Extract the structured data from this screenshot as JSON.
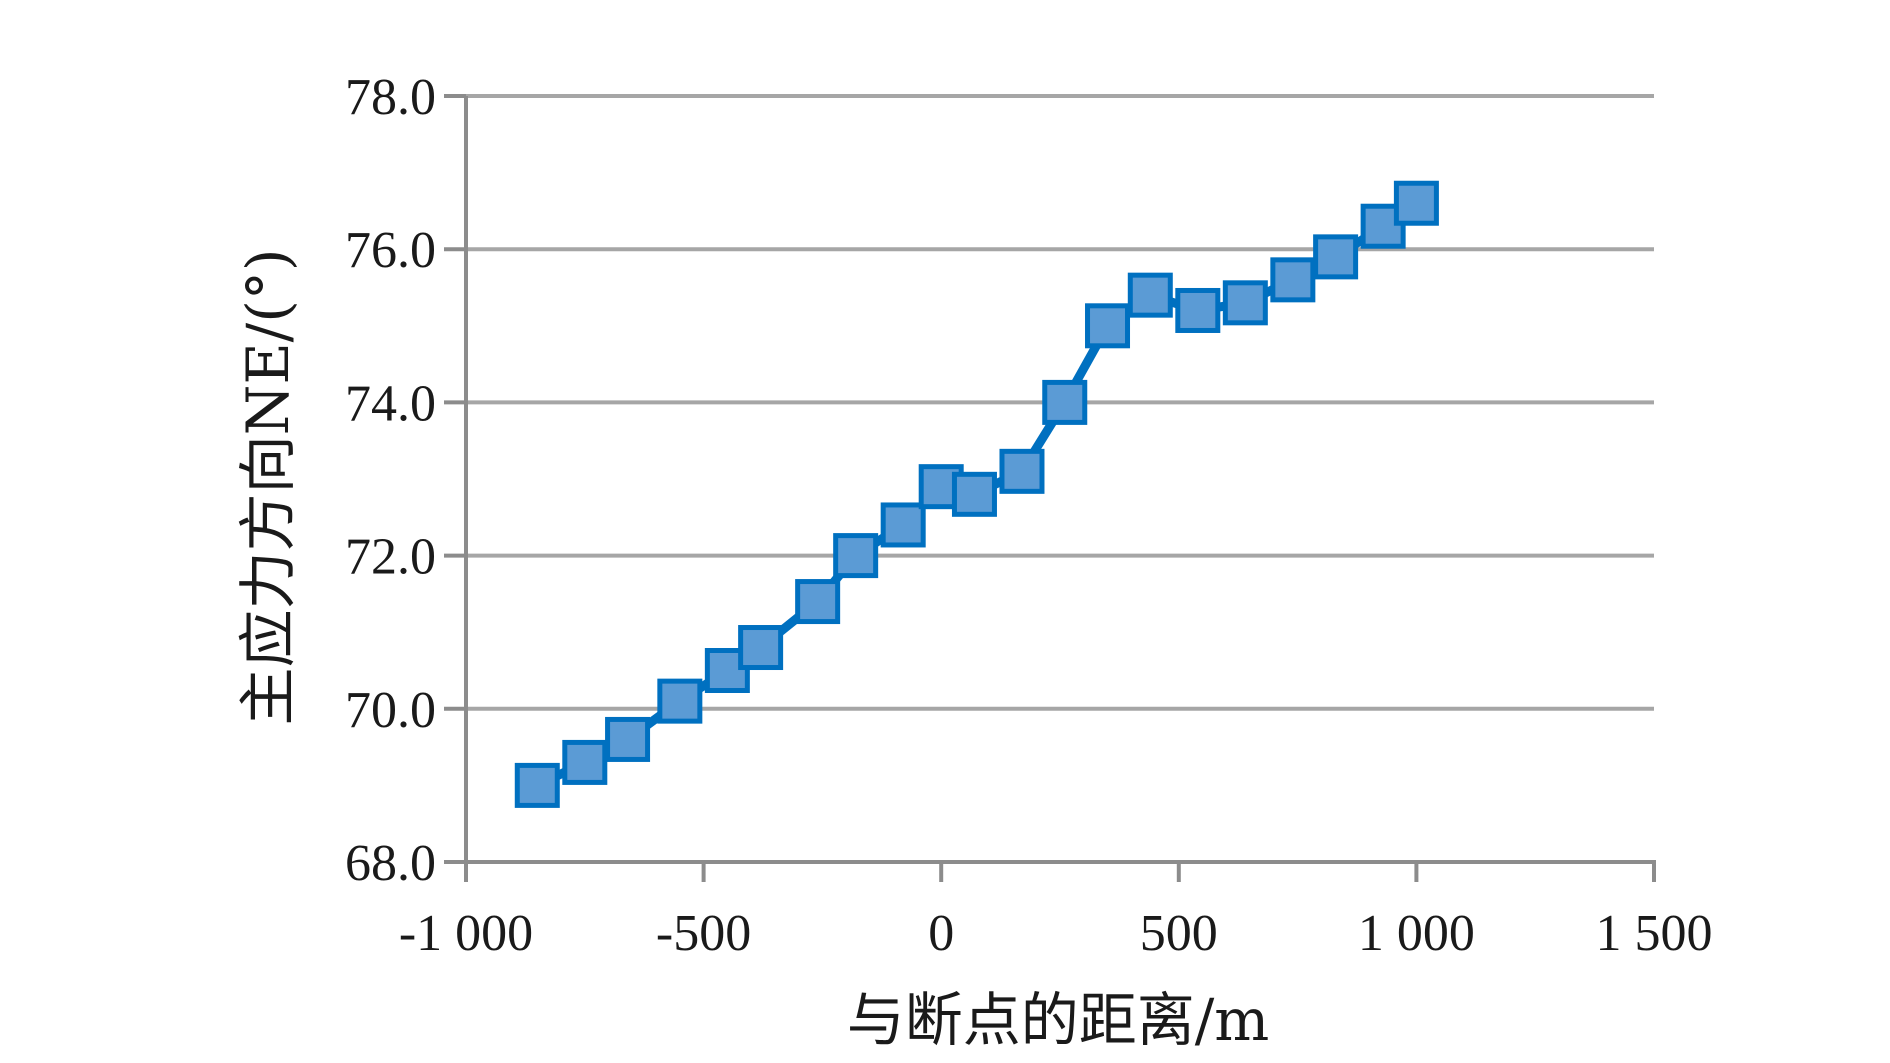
{
  "chart_data": {
    "type": "line",
    "title": "",
    "xlabel": "与断点的距离/m",
    "ylabel": "主应力方向NE/(°)",
    "xlim": [
      -1000,
      1500
    ],
    "ylim": [
      68,
      78
    ],
    "x_ticks": [
      -1000,
      -500,
      0,
      500,
      1000,
      1500
    ],
    "x_tick_labels": [
      "-1 000",
      "-500",
      "0",
      "500",
      "1 000",
      "1 500"
    ],
    "y_ticks": [
      68,
      70,
      72,
      74,
      76,
      78
    ],
    "y_tick_labels": [
      "68.0",
      "70.0",
      "72.0",
      "74.0",
      "76.0",
      "78.0"
    ],
    "grid": "horizontal",
    "legend": "none",
    "marker": "square",
    "series": [
      {
        "x": [
          -850,
          -750,
          -660,
          -550,
          -450,
          -380,
          -260,
          -180,
          -80,
          0,
          70,
          170,
          260,
          350,
          440,
          540,
          640,
          740,
          830,
          930,
          1000
        ],
        "y": [
          69.0,
          69.3,
          69.6,
          70.1,
          70.5,
          70.8,
          71.4,
          72.0,
          72.4,
          72.9,
          72.8,
          73.1,
          74.0,
          75.0,
          75.4,
          75.2,
          75.3,
          75.6,
          75.9,
          76.3,
          76.6
        ]
      }
    ],
    "colors": {
      "line": "#0070C0",
      "marker_fill": "#5B9BD5",
      "marker_edge": "#0070C0",
      "grid": "#a6a6a6",
      "axis": "#8c8c8c"
    }
  }
}
